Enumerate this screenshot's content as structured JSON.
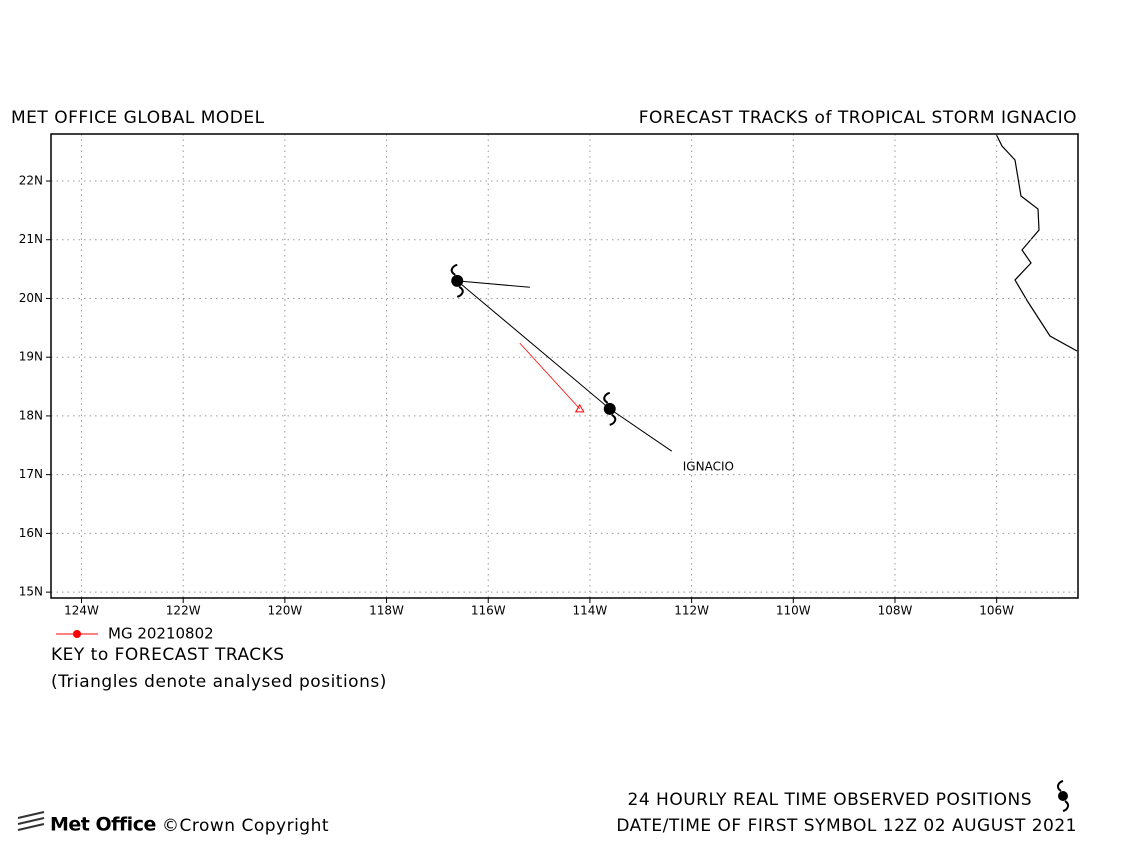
{
  "chart_data": {
    "type": "track-map",
    "title_left": "MET OFFICE GLOBAL MODEL",
    "title_right": "FORECAST TRACKS of TROPICAL STORM IGNACIO",
    "xlim": [
      -124.6,
      -104.4
    ],
    "ylim": [
      14.9,
      22.8
    ],
    "xticks": [
      {
        "value": -124,
        "label": "124W"
      },
      {
        "value": -122,
        "label": "122W"
      },
      {
        "value": -120,
        "label": "120W"
      },
      {
        "value": -118,
        "label": "118W"
      },
      {
        "value": -116,
        "label": "116W"
      },
      {
        "value": -114,
        "label": "114W"
      },
      {
        "value": -112,
        "label": "112W"
      },
      {
        "value": -110,
        "label": "110W"
      },
      {
        "value": -108,
        "label": "108W"
      },
      {
        "value": -106,
        "label": "106W"
      }
    ],
    "yticks": [
      {
        "value": 15,
        "label": "15N"
      },
      {
        "value": 16,
        "label": "16N"
      },
      {
        "value": 17,
        "label": "17N"
      },
      {
        "value": 18,
        "label": "18N"
      },
      {
        "value": 19,
        "label": "19N"
      },
      {
        "value": 20,
        "label": "20N"
      },
      {
        "value": 21,
        "label": "21N"
      },
      {
        "value": 22,
        "label": "22N"
      }
    ],
    "grid": true,
    "series": [
      {
        "name": "IGNACIO",
        "color": "#000000",
        "x": [
          -112.39,
          -113.61,
          -116.61,
          -115.18
        ],
        "values": [
          17.4,
          18.12,
          20.3,
          20.19
        ]
      },
      {
        "name": "MG 20210802",
        "color": "#ff0000",
        "x": [
          -115.38,
          -114.2
        ],
        "values": [
          19.24,
          18.12
        ]
      }
    ],
    "observed": {
      "x": [
        -116.61,
        -113.61
      ],
      "values": [
        20.3,
        18.12
      ]
    },
    "key_title": "KEY to FORECAST TRACKS",
    "key_note": "(Triangles denote analysed positions)",
    "footer_line1": "24 HOURLY REAL TIME OBSERVED POSITIONS",
    "footer_line2": "DATE/TIME OF FIRST SYMBOL 12Z 02 AUGUST 2021",
    "logo": "Met Office",
    "copyright": "©Crown Copyright"
  }
}
